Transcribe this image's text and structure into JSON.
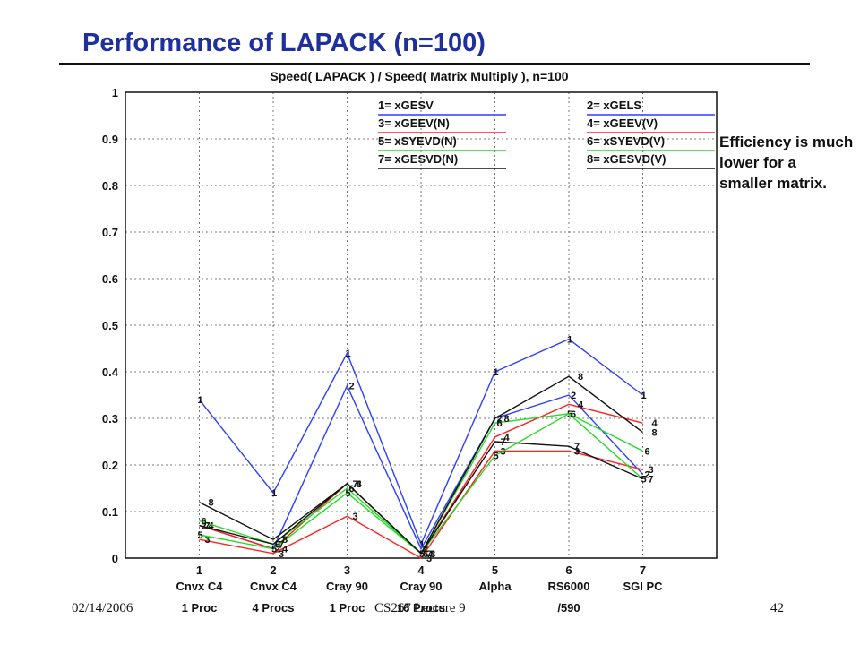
{
  "slide": {
    "title": "Performance of LAPACK (n=100)",
    "note": "Efficiency is much lower for a smaller matrix.",
    "footer_date": "02/14/2006",
    "footer_course": "CS267 Lecture 9",
    "footer_page": "42"
  },
  "colors": {
    "title": "#1f2f9e",
    "blue": "#2b3fff",
    "red": "#ff2020",
    "green": "#22dd22",
    "black": "#111111",
    "grid": "#555555"
  },
  "chart_data": {
    "type": "line",
    "title": "Speed( LAPACK ) / Speed( Matrix Multiply ), n=100",
    "xlabel": "",
    "ylabel": "",
    "ylim": [
      0,
      1
    ],
    "yticks": [
      "0",
      "0.1",
      "0.2",
      "0.3",
      "0.4",
      "0.5",
      "0.6",
      "0.7",
      "0.8",
      "0.9",
      "1"
    ],
    "grid": true,
    "categories": [
      {
        "num": "1",
        "line1": "Cnvx C4",
        "line2": "1 Proc"
      },
      {
        "num": "2",
        "line1": "Cnvx C4",
        "line2": "4 Procs"
      },
      {
        "num": "3",
        "line1": "Cray 90",
        "line2": "1 Proc"
      },
      {
        "num": "4",
        "line1": "Cray 90",
        "line2": "16 Procs"
      },
      {
        "num": "5",
        "line1": "Alpha",
        "line2": ""
      },
      {
        "num": "6",
        "line1": "RS6000",
        "line2": "/590"
      },
      {
        "num": "7",
        "line1": "SGI PC",
        "line2": ""
      }
    ],
    "legend": [
      {
        "label": "1= xGESV",
        "color": "#2b3fff"
      },
      {
        "label": "2= xGELS",
        "color": "#2b3fff"
      },
      {
        "label": "3= xGEEV(N)",
        "color": "#ff2020"
      },
      {
        "label": "4= xGEEV(V)",
        "color": "#ff2020"
      },
      {
        "label": "5= xSYEVD(N)",
        "color": "#22dd22"
      },
      {
        "label": "6= xSYEVD(V)",
        "color": "#22dd22"
      },
      {
        "label": "7= xGESVD(N)",
        "color": "#111111"
      },
      {
        "label": "8= xGESVD(V)",
        "color": "#111111"
      }
    ],
    "series": [
      {
        "marker": "1",
        "color": "#2b3fff",
        "values": [
          0.34,
          0.14,
          0.44,
          0.03,
          0.4,
          0.47,
          0.35
        ]
      },
      {
        "marker": "2",
        "color": "#2b3fff",
        "values": [
          0.07,
          0.02,
          0.37,
          0.02,
          0.3,
          0.35,
          0.18
        ]
      },
      {
        "marker": "3",
        "color": "#ff2020",
        "values": [
          0.04,
          0.01,
          0.09,
          0.0,
          0.23,
          0.23,
          0.19
        ]
      },
      {
        "marker": "4",
        "color": "#ff2020",
        "values": [
          0.07,
          0.02,
          0.16,
          0.01,
          0.26,
          0.33,
          0.29
        ]
      },
      {
        "marker": "5",
        "color": "#22dd22",
        "values": [
          0.05,
          0.02,
          0.14,
          0.01,
          0.22,
          0.31,
          0.17
        ]
      },
      {
        "marker": "6",
        "color": "#22dd22",
        "values": [
          0.08,
          0.03,
          0.15,
          0.01,
          0.29,
          0.31,
          0.23
        ]
      },
      {
        "marker": "7",
        "color": "#111111",
        "values": [
          0.07,
          0.03,
          0.16,
          0.01,
          0.25,
          0.24,
          0.17
        ]
      },
      {
        "marker": "8",
        "color": "#111111",
        "values": [
          0.12,
          0.04,
          0.16,
          0.01,
          0.3,
          0.39,
          0.27
        ]
      }
    ]
  }
}
